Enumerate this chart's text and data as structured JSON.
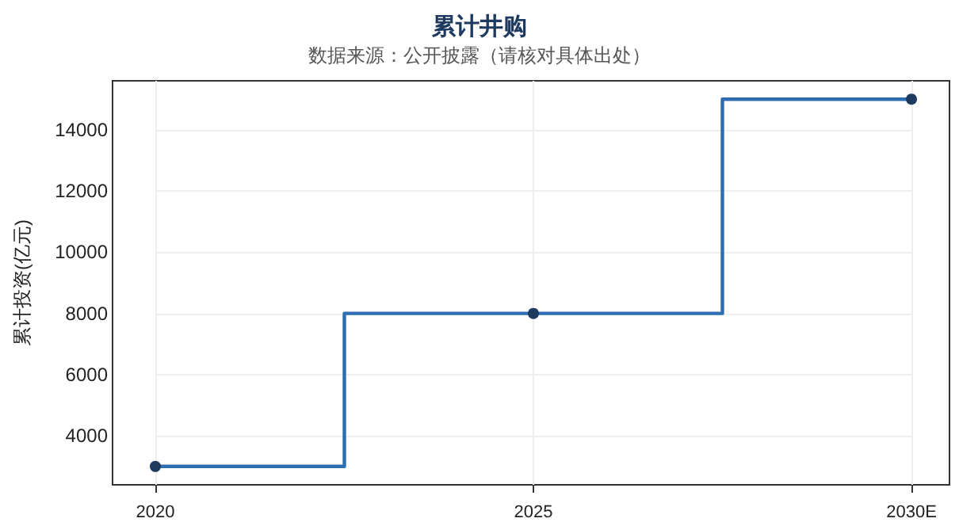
{
  "chart_data": {
    "type": "step",
    "title": "累计井购",
    "subtitle": "数据来源：公开披露（请核对具体出处）",
    "ylabel": "累计投资(亿元)",
    "categories": [
      "2020",
      "2025",
      "2030E"
    ],
    "series": [
      {
        "color": "#2f6db1",
        "values": [
          3000,
          8000,
          15000
        ]
      }
    ],
    "ylim": [
      2400,
      15600
    ],
    "yticks": [
      4000,
      6000,
      8000,
      10000,
      12000,
      14000
    ],
    "grid": true,
    "marker": "circle"
  }
}
